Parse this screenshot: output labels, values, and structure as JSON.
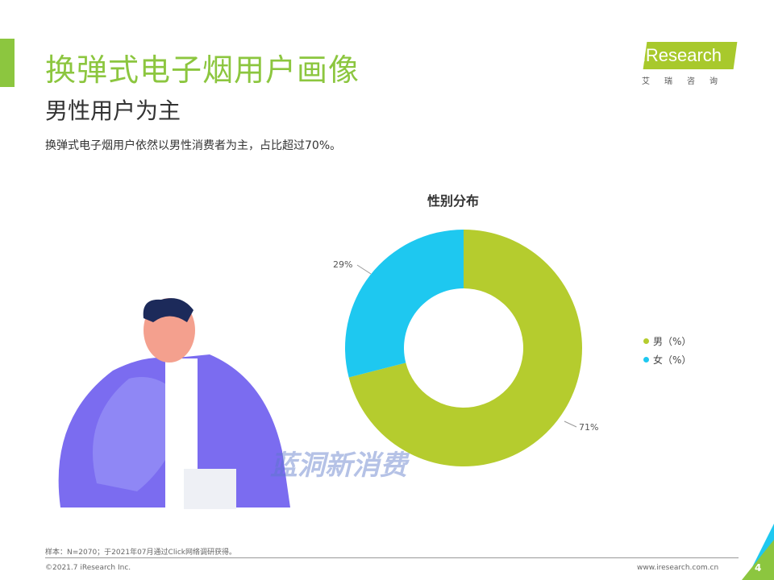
{
  "header": {
    "title": "换弹式电子烟用户画像",
    "subtitle": "男性用户为主",
    "description": "换弹式电子烟用户依然以男性消费者为主，占比超过70%。"
  },
  "logo": {
    "text": "iResearch",
    "cn": "艾瑞咨询"
  },
  "watermark": "蓝洞新消费",
  "chart_data": {
    "type": "pie",
    "donut": true,
    "title": "性别分布",
    "categories": [
      "男（%）",
      "女（%）"
    ],
    "values": [
      71,
      29
    ],
    "labels": [
      "71%",
      "29%"
    ],
    "colors": [
      "#b5cc2e",
      "#1ec8f0"
    ],
    "legend": "right"
  },
  "footer": {
    "note": "样本：N=2070；于2021年07月通过Click网络调研获得。",
    "copyright": "©2021.7 iResearch Inc.",
    "url": "www.iresearch.com.cn",
    "page": "4"
  }
}
